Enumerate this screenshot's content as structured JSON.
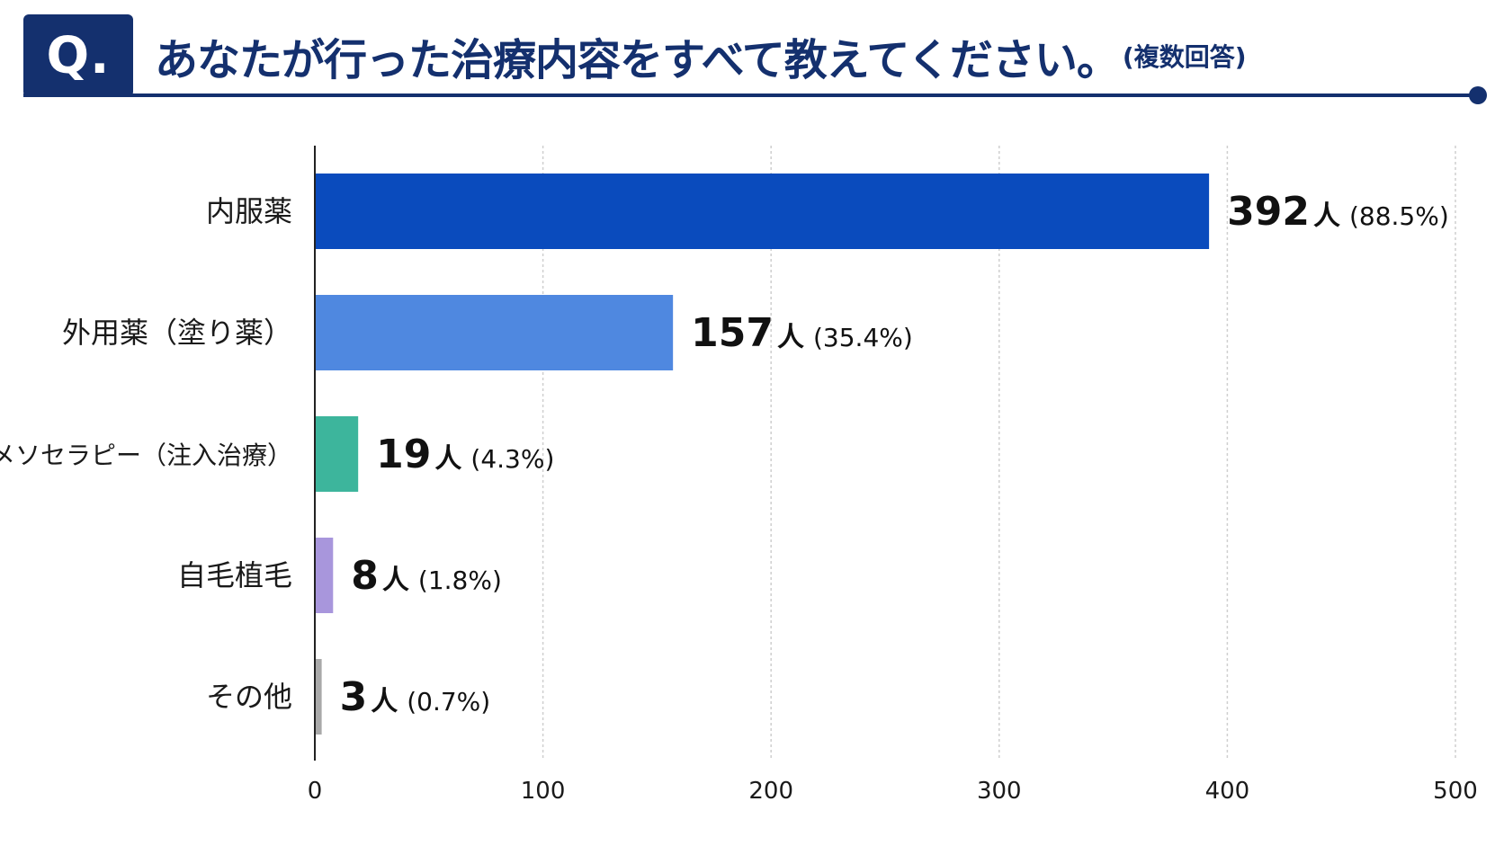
{
  "header": {
    "badge": "Q.",
    "question": "あなたが行った治療内容をすべて教えてください。",
    "note": "(複数回答)"
  },
  "chart_data": {
    "type": "bar",
    "orientation": "horizontal",
    "categories": [
      "内服薬",
      "外用薬（塗り薬）",
      "メソセラピー（注入治療）",
      "自毛植毛",
      "その他"
    ],
    "values": [
      392,
      157,
      19,
      8,
      3
    ],
    "percent_labels": [
      "(88.5%)",
      "(35.4%)",
      "(4.3%)",
      "(1.8%)",
      "(0.7%)"
    ],
    "unit": "人",
    "colors": [
      "#0a4bbd",
      "#4f88e0",
      "#3db59c",
      "#a896dc",
      "#a9a9a9"
    ],
    "xlim": [
      0,
      500
    ],
    "xticks": [
      0,
      100,
      200,
      300,
      400,
      500
    ],
    "grid": true,
    "legend": "none"
  }
}
